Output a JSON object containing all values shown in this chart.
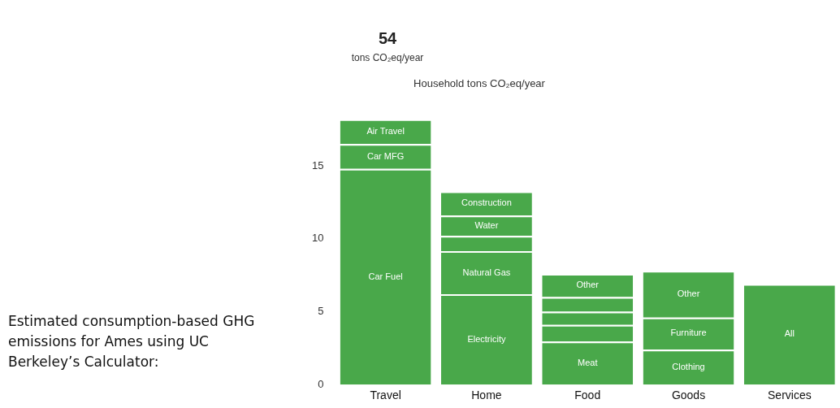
{
  "chart_data": {
    "type": "bar",
    "stacked": true,
    "title": "54",
    "subtitle": "tons CO₂eq/year",
    "categories": [
      "Travel",
      "Home",
      "Food",
      "Goods",
      "Services"
    ],
    "series": [
      {
        "color": "#49a84a",
        "values": [
          14.8,
          6.2,
          2.95,
          2.4,
          6.9
        ],
        "value_labels": [
          "Car Fuel",
          "Electricity",
          "Meat",
          "Clothing",
          "All"
        ]
      },
      {
        "color": "#49a84a",
        "values": [
          1.7,
          2.95,
          1.15,
          2.2,
          null
        ],
        "value_labels": [
          "Car MFG",
          "Natural Gas",
          null,
          "Furniture",
          null
        ]
      },
      {
        "color": "#49a84a",
        "values": [
          1.7,
          1.05,
          0.9,
          3.2,
          null
        ],
        "value_labels": [
          "Air Travel",
          null,
          null,
          "Other",
          null
        ]
      },
      {
        "color": "#49a84a",
        "values": [
          null,
          1.4,
          1.0,
          null,
          null
        ],
        "value_labels": [
          null,
          "Water",
          null,
          null,
          null
        ]
      },
      {
        "color": "#49a84a",
        "values": [
          null,
          1.65,
          1.6,
          null,
          null
        ],
        "value_labels": [
          null,
          "Construction",
          "Other",
          null,
          null
        ]
      }
    ],
    "ylim": [
      0,
      18.2
    ],
    "yticks": [
      0,
      5,
      10,
      15
    ],
    "grid": false,
    "legend": false,
    "annotations": [
      "Estimated  consumption-based GHG emissions for Ames using UC Berkeley’s Calculator:",
      "Household tons CO₂eq/year"
    ]
  }
}
